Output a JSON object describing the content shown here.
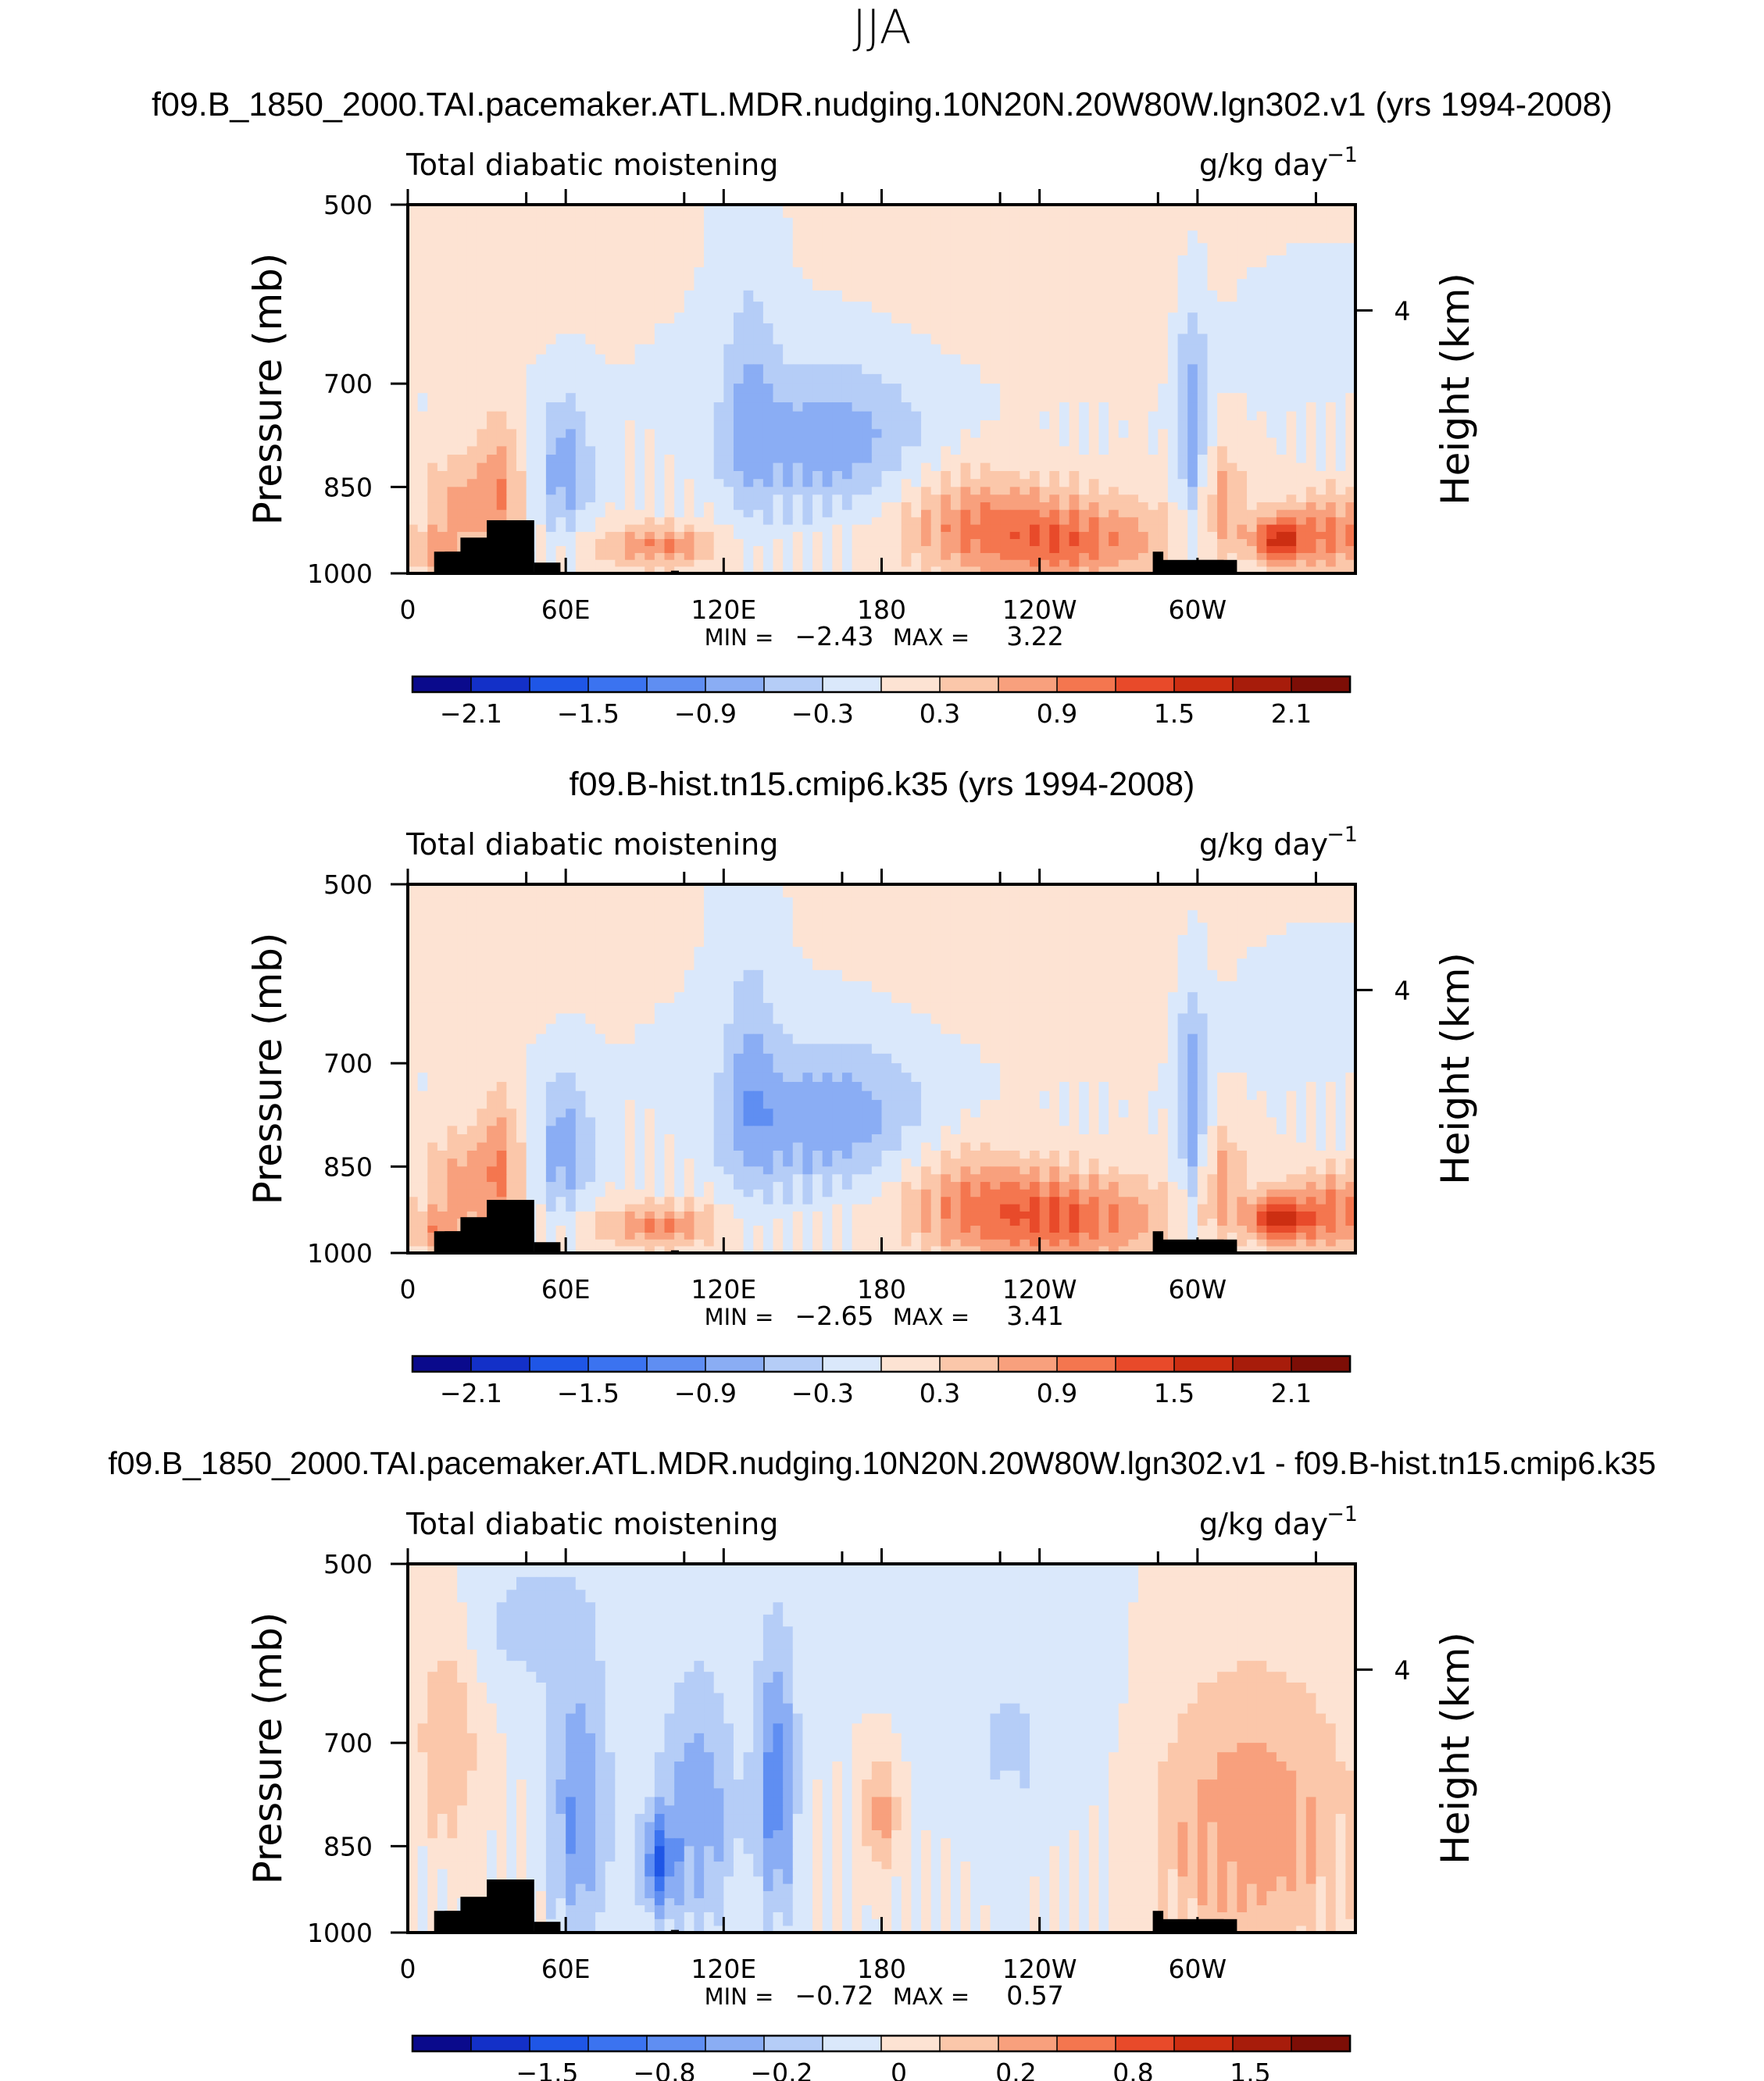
{
  "figure": {
    "season": "JJA"
  },
  "colors": {
    "black": "#000000"
  },
  "chart_data": [
    {
      "type": "heatmap",
      "title": "f09.B_1850_2000.TAI.pacemaker.ATL.MDR.nudging.10N20N.20W80W.lgn302.v1 (yrs 1994-2008)",
      "left_label": "Total diabatic moistening",
      "right_label": "g/kg day",
      "right_label_exp": "−1",
      "ylabel": "Pressure (mb)",
      "ylabel_right": "Height (km)",
      "x_ticks": [
        "0",
        "60E",
        "120E",
        "180",
        "120W",
        "60W"
      ],
      "y_ticks": [
        "500",
        "700",
        "850",
        "1000"
      ],
      "y_right_ticks": [
        "4"
      ],
      "min_label": "MIN =",
      "min_value": "−2.43",
      "max_label": "MAX =",
      "max_value": "3.22",
      "colorbar_labels": [
        "−2.1",
        "−1.5",
        "−0.9",
        "−0.3",
        "0.3",
        "0.9",
        "1.5",
        "2.1"
      ],
      "colorbar_colors": [
        "#0a0a8c",
        "#1330c8",
        "#1f56e6",
        "#3b73f0",
        "#5f8ef2",
        "#8aadf4",
        "#b5cdf7",
        "#dae8fb",
        "#fde3d3",
        "#fbc7aa",
        "#f8a07d",
        "#f4764f",
        "#e84a2a",
        "#cc2e12",
        "#a71c0b",
        "#7d0e06"
      ],
      "field_scale": 2.7,
      "zmin": -2.43,
      "zmax": 3.22,
      "grid": false
    },
    {
      "type": "heatmap",
      "title": "f09.B-hist.tn15.cmip6.k35 (yrs 1994-2008)",
      "left_label": "Total diabatic moistening",
      "right_label": "g/kg day",
      "right_label_exp": "−1",
      "ylabel": "Pressure (mb)",
      "ylabel_right": "Height (km)",
      "x_ticks": [
        "0",
        "60E",
        "120E",
        "180",
        "120W",
        "60W"
      ],
      "y_ticks": [
        "500",
        "700",
        "850",
        "1000"
      ],
      "y_right_ticks": [
        "4"
      ],
      "min_label": "MIN =",
      "min_value": "−2.65",
      "max_label": "MAX =",
      "max_value": "3.41",
      "colorbar_labels": [
        "−2.1",
        "−1.5",
        "−0.9",
        "−0.3",
        "0.3",
        "0.9",
        "1.5",
        "2.1"
      ],
      "colorbar_colors": [
        "#0a0a8c",
        "#1330c8",
        "#1f56e6",
        "#3b73f0",
        "#5f8ef2",
        "#8aadf4",
        "#b5cdf7",
        "#dae8fb",
        "#fde3d3",
        "#fbc7aa",
        "#f8a07d",
        "#f4764f",
        "#e84a2a",
        "#cc2e12",
        "#a71c0b",
        "#7d0e06"
      ],
      "field_scale": 2.85,
      "zmin": -2.65,
      "zmax": 3.41,
      "grid": false
    },
    {
      "type": "heatmap",
      "title": "f09.B_1850_2000.TAI.pacemaker.ATL.MDR.nudging.10N20N.20W80W.lgn302.v1 - f09.B-hist.tn15.cmip6.k35",
      "left_label": "Total diabatic moistening",
      "right_label": "g/kg day",
      "right_label_exp": "−1",
      "ylabel": "Pressure (mb)",
      "ylabel_right": "Height (km)",
      "x_ticks": [
        "0",
        "60E",
        "120E",
        "180",
        "120W",
        "60W"
      ],
      "y_ticks": [
        "500",
        "700",
        "850",
        "1000"
      ],
      "y_right_ticks": [
        "4"
      ],
      "min_label": "MIN =",
      "min_value": "−0.72",
      "max_label": "MAX =",
      "max_value": "0.57",
      "colorbar_labels": [
        "−1.5",
        "−0.8",
        "−0.2",
        "0",
        "0.2",
        "0.8",
        "1.5"
      ],
      "colorbar_colors": [
        "#0a0a8c",
        "#1330c8",
        "#1f56e6",
        "#3b73f0",
        "#5f8ef2",
        "#8aadf4",
        "#b5cdf7",
        "#dae8fb",
        "#fde3d3",
        "#fbc7aa",
        "#f8a07d",
        "#f4764f",
        "#e84a2a",
        "#cc2e12",
        "#a71c0b",
        "#7d0e06"
      ],
      "field_scale": 0.45,
      "zmin": -0.72,
      "zmax": 0.57,
      "grid": false
    }
  ]
}
